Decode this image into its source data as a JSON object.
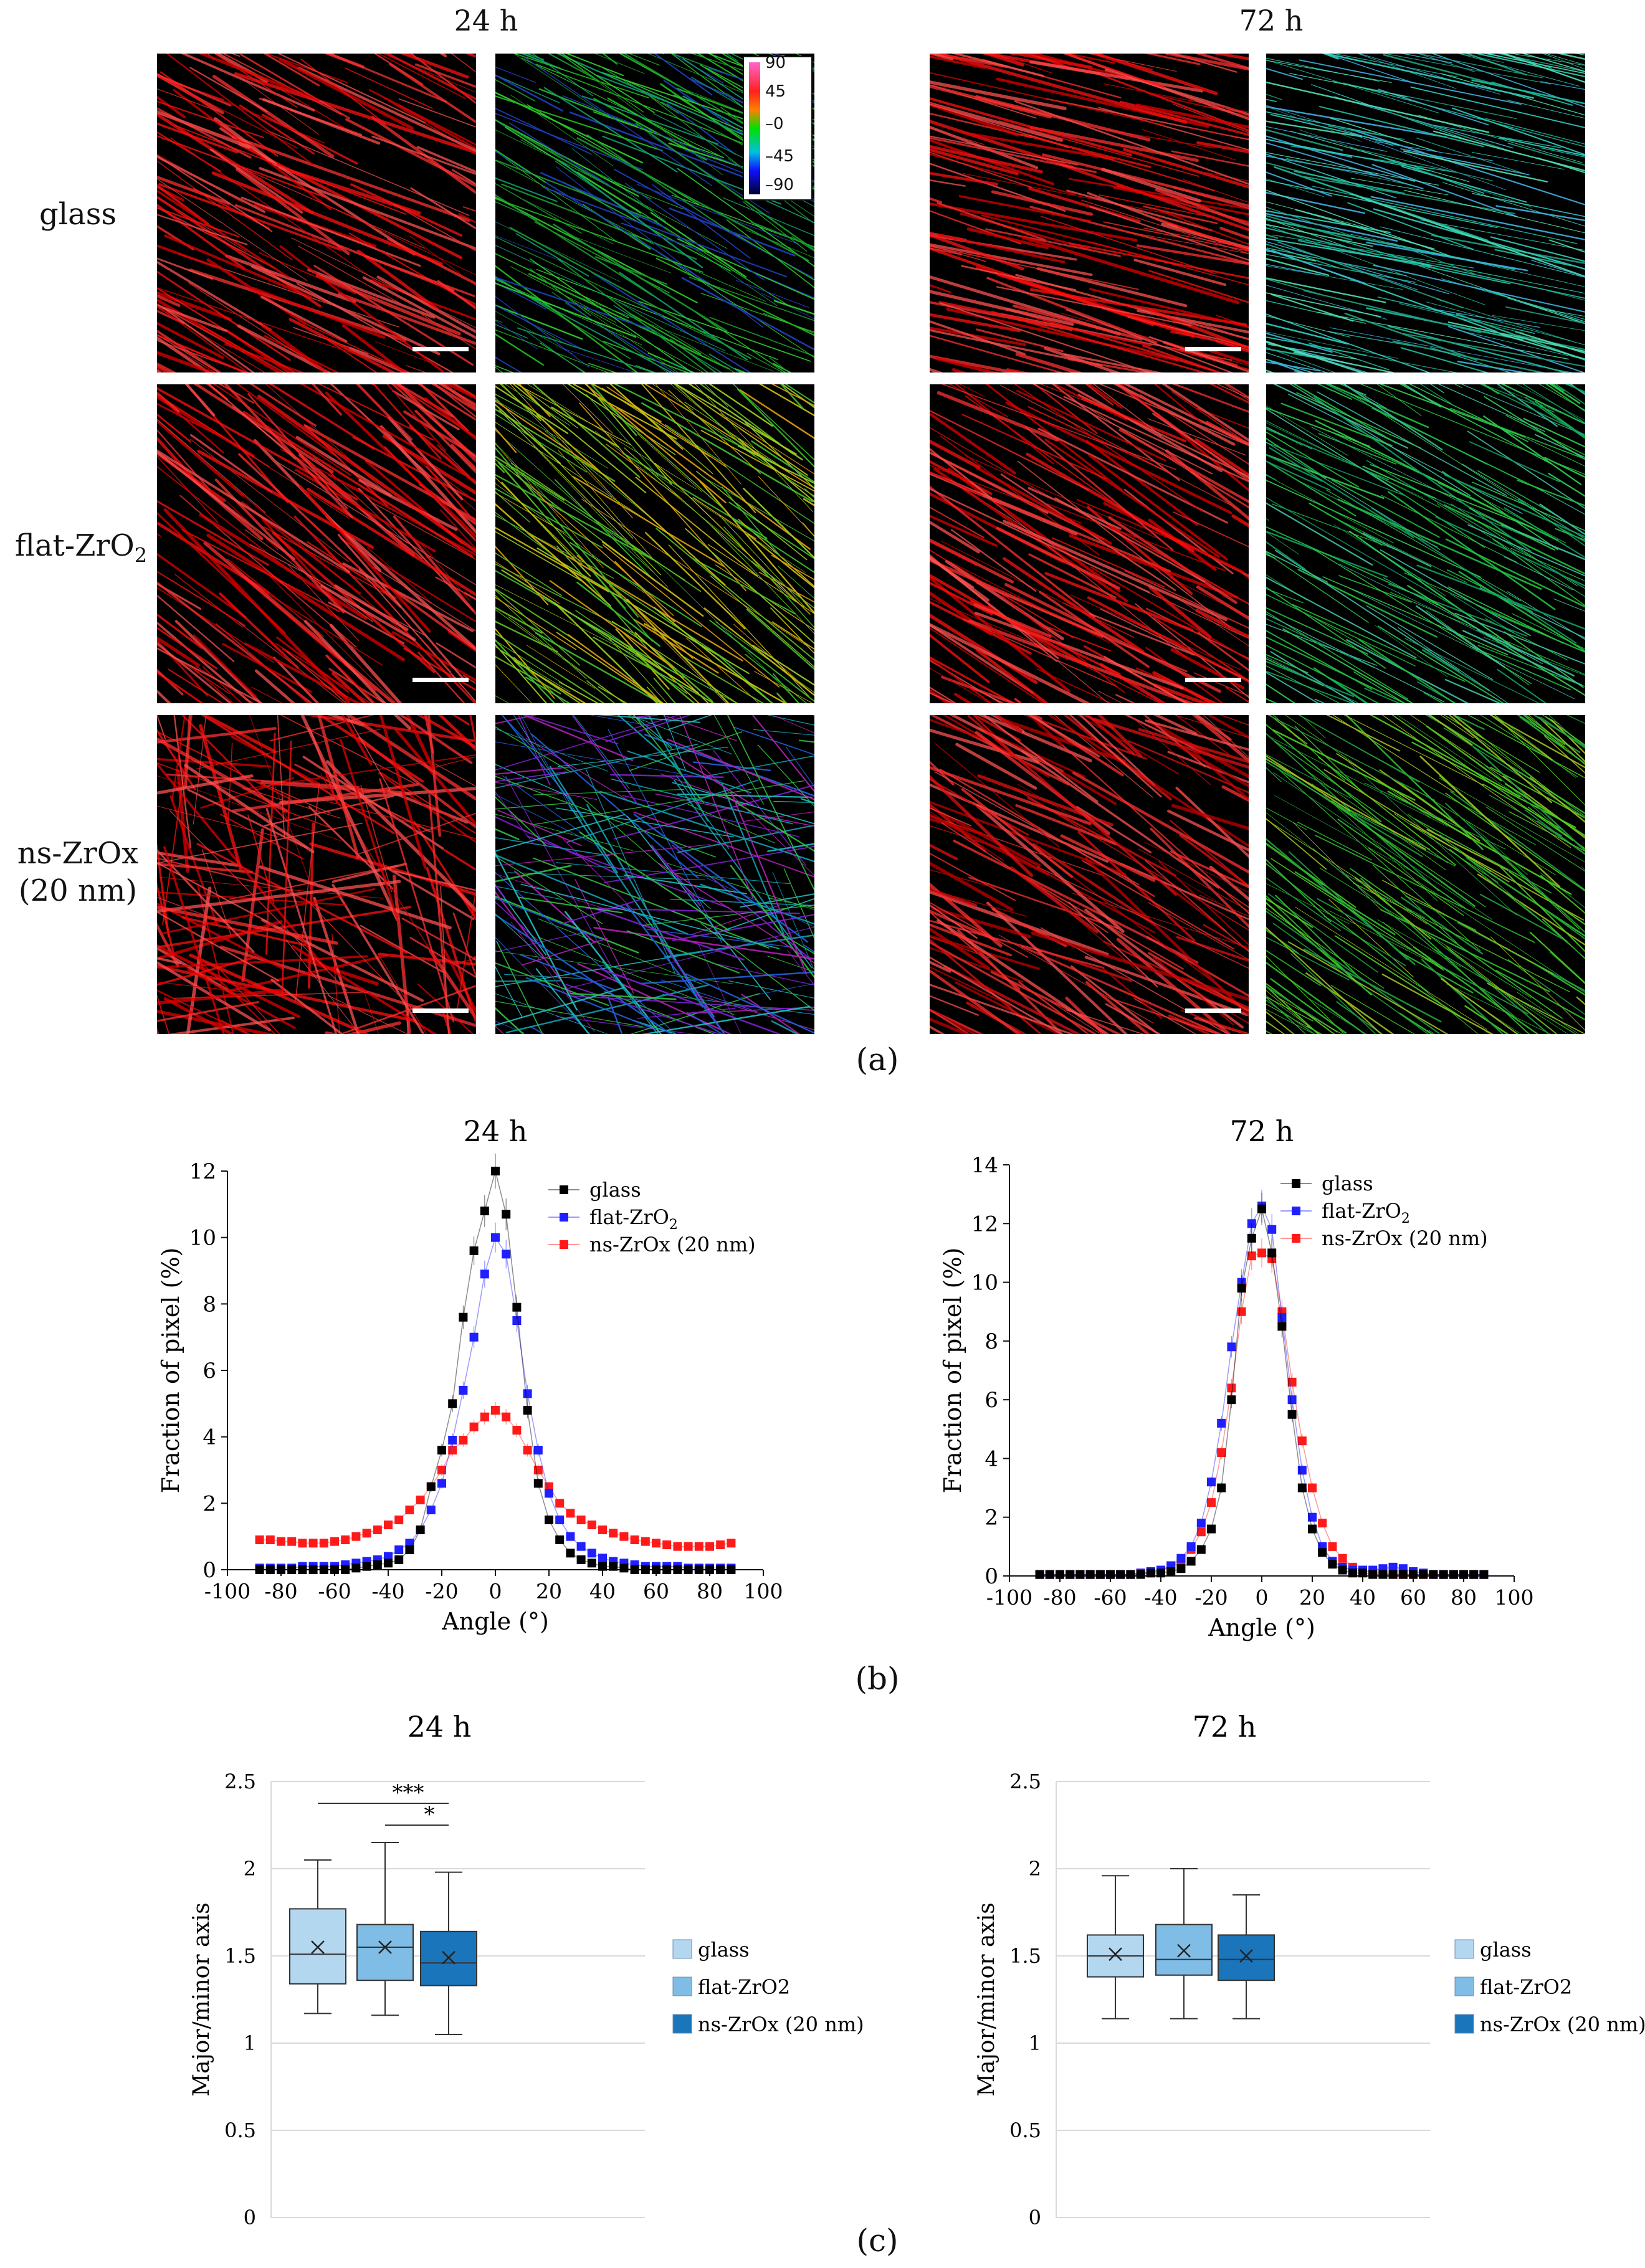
{
  "panel_a": {
    "time_24": "24 h",
    "time_72": "72 h",
    "rows": [
      {
        "label_main": "glass",
        "label_sub": "",
        "label_line2": ""
      },
      {
        "label_main": "flat-ZrO",
        "label_sub": "2",
        "label_line2": ""
      },
      {
        "label_main": "ns-ZrOx",
        "label_sub": "",
        "label_line2": "(20 nm)"
      }
    ],
    "colorbar": [
      "90",
      "45",
      "–0",
      "–45",
      "–90"
    ],
    "sublabel": "(a)"
  },
  "panel_b": {
    "sublabel": "(b)"
  },
  "panel_c": {
    "sublabel": "(c)"
  },
  "colors": {
    "glass": "#000000",
    "flat": "#1f1fff",
    "ns": "#ff1a1a",
    "box_glass": "#b4d7f0",
    "box_flat": "#7fbde6",
    "box_ns": "#1b75bb"
  },
  "chart_data": [
    {
      "type": "scatter",
      "title": "24 h",
      "xlabel": "Angle (°)",
      "ylabel": "Fraction of pixel (%)",
      "xlim": [
        -100,
        100
      ],
      "ylim": [
        0,
        12
      ],
      "xticks": [
        -100,
        -80,
        -60,
        -40,
        -20,
        0,
        20,
        40,
        60,
        80,
        100
      ],
      "yticks": [
        0,
        2,
        4,
        6,
        8,
        10,
        12
      ],
      "x": [
        -88,
        -84,
        -80,
        -76,
        -72,
        -68,
        -64,
        -60,
        -56,
        -52,
        -48,
        -44,
        -40,
        -36,
        -32,
        -28,
        -24,
        -20,
        -16,
        -12,
        -8,
        -4,
        0,
        4,
        8,
        12,
        16,
        20,
        24,
        28,
        32,
        36,
        40,
        44,
        48,
        52,
        56,
        60,
        64,
        68,
        72,
        76,
        80,
        84,
        88
      ],
      "series": [
        {
          "name": "glass",
          "legend": "glass",
          "legend_sub": "",
          "values": [
            0.0,
            0.0,
            0.0,
            0.0,
            0.0,
            0.0,
            0.0,
            0.0,
            0.0,
            0.05,
            0.1,
            0.15,
            0.2,
            0.3,
            0.6,
            1.2,
            2.5,
            3.6,
            5.0,
            7.6,
            9.6,
            10.8,
            12.0,
            10.7,
            7.9,
            4.8,
            2.6,
            1.5,
            0.9,
            0.5,
            0.3,
            0.2,
            0.1,
            0.1,
            0.05,
            0.0,
            0.0,
            0.0,
            0.0,
            0.0,
            0.0,
            0.0,
            0.0,
            0.0,
            0.0
          ]
        },
        {
          "name": "flat-ZrO2",
          "legend": "flat-ZrO",
          "legend_sub": "2",
          "values": [
            0.05,
            0.05,
            0.05,
            0.05,
            0.1,
            0.1,
            0.1,
            0.1,
            0.15,
            0.2,
            0.25,
            0.3,
            0.4,
            0.6,
            0.8,
            1.2,
            1.8,
            2.6,
            3.9,
            5.4,
            7.0,
            8.9,
            10.0,
            9.5,
            7.5,
            5.3,
            3.6,
            2.3,
            1.5,
            1.0,
            0.7,
            0.5,
            0.35,
            0.25,
            0.2,
            0.15,
            0.1,
            0.1,
            0.1,
            0.1,
            0.05,
            0.05,
            0.05,
            0.05,
            0.05
          ]
        },
        {
          "name": "ns-ZrOx (20 nm)",
          "legend": "ns-ZrOx (20 nm)",
          "legend_sub": "",
          "values": [
            0.9,
            0.9,
            0.85,
            0.85,
            0.8,
            0.8,
            0.8,
            0.85,
            0.9,
            1.0,
            1.1,
            1.2,
            1.35,
            1.5,
            1.8,
            2.1,
            2.5,
            3.0,
            3.6,
            3.9,
            4.3,
            4.6,
            4.8,
            4.6,
            4.2,
            3.6,
            3.0,
            2.5,
            2.0,
            1.7,
            1.5,
            1.35,
            1.2,
            1.1,
            1.0,
            0.9,
            0.85,
            0.8,
            0.75,
            0.7,
            0.7,
            0.7,
            0.7,
            0.75,
            0.8
          ]
        }
      ]
    },
    {
      "type": "scatter",
      "title": "72 h",
      "xlabel": "Angle (°)",
      "ylabel": "Fraction of pixel (%)",
      "xlim": [
        -100,
        100
      ],
      "ylim": [
        0,
        14
      ],
      "xticks": [
        -100,
        -80,
        -60,
        -40,
        -20,
        0,
        20,
        40,
        60,
        80,
        100
      ],
      "yticks": [
        0,
        2,
        4,
        6,
        8,
        10,
        12,
        14
      ],
      "x": [
        -88,
        -84,
        -80,
        -76,
        -72,
        -68,
        -64,
        -60,
        -56,
        -52,
        -48,
        -44,
        -40,
        -36,
        -32,
        -28,
        -24,
        -20,
        -16,
        -12,
        -8,
        -4,
        0,
        4,
        8,
        12,
        16,
        20,
        24,
        28,
        32,
        36,
        40,
        44,
        48,
        52,
        56,
        60,
        64,
        68,
        72,
        76,
        80,
        84,
        88
      ],
      "series": [
        {
          "name": "glass",
          "legend": "glass",
          "legend_sub": "",
          "values": [
            0.05,
            0.05,
            0.05,
            0.05,
            0.05,
            0.05,
            0.05,
            0.05,
            0.05,
            0.05,
            0.05,
            0.1,
            0.1,
            0.15,
            0.25,
            0.5,
            0.9,
            1.6,
            3.0,
            6.0,
            9.8,
            11.5,
            12.5,
            11.0,
            8.5,
            5.5,
            3.0,
            1.6,
            0.8,
            0.4,
            0.2,
            0.1,
            0.1,
            0.05,
            0.05,
            0.05,
            0.05,
            0.05,
            0.05,
            0.05,
            0.05,
            0.05,
            0.05,
            0.05,
            0.05
          ]
        },
        {
          "name": "flat-ZrO2",
          "legend": "flat-ZrO",
          "legend_sub": "2",
          "values": [
            0.05,
            0.05,
            0.05,
            0.05,
            0.05,
            0.05,
            0.05,
            0.05,
            0.05,
            0.05,
            0.1,
            0.15,
            0.2,
            0.35,
            0.6,
            1.0,
            1.8,
            3.2,
            5.2,
            7.8,
            10.0,
            12.0,
            12.6,
            11.8,
            8.8,
            6.0,
            3.6,
            2.0,
            1.0,
            0.5,
            0.3,
            0.2,
            0.2,
            0.2,
            0.25,
            0.3,
            0.25,
            0.15,
            0.1,
            0.05,
            0.05,
            0.05,
            0.05,
            0.05,
            0.05
          ]
        },
        {
          "name": "ns-ZrOx (20 nm)",
          "legend": "ns-ZrOx (20 nm)",
          "legend_sub": "",
          "values": [
            0.05,
            0.05,
            0.05,
            0.05,
            0.05,
            0.05,
            0.05,
            0.05,
            0.05,
            0.05,
            0.1,
            0.1,
            0.2,
            0.3,
            0.5,
            0.9,
            1.5,
            2.5,
            4.2,
            6.4,
            9.0,
            10.9,
            11.0,
            10.8,
            9.0,
            6.6,
            4.6,
            3.0,
            1.8,
            1.0,
            0.6,
            0.3,
            0.2,
            0.1,
            0.1,
            0.05,
            0.05,
            0.05,
            0.05,
            0.05,
            0.05,
            0.05,
            0.05,
            0.05,
            0.05
          ]
        }
      ]
    },
    {
      "type": "box",
      "title": "24 h",
      "xlabel": "",
      "ylabel": "Major/minor axis",
      "ylim": [
        0,
        2.5
      ],
      "yticks": [
        "0",
        "0.5",
        "1",
        "1.5",
        "2",
        "2.5"
      ],
      "significance": [
        {
          "from": 0,
          "to": 2,
          "label": "***"
        },
        {
          "from": 1,
          "to": 2,
          "label": "*"
        }
      ],
      "series": [
        {
          "name": "glass",
          "min": 1.17,
          "q1": 1.34,
          "median": 1.51,
          "q3": 1.77,
          "max": 2.05,
          "mean": 1.55
        },
        {
          "name": "flat-ZrO2",
          "min": 1.16,
          "q1": 1.36,
          "median": 1.55,
          "q3": 1.68,
          "max": 2.15,
          "mean": 1.55
        },
        {
          "name": "ns-ZrOx (20 nm)",
          "min": 1.05,
          "q1": 1.33,
          "median": 1.46,
          "q3": 1.64,
          "max": 1.98,
          "mean": 1.49
        }
      ]
    },
    {
      "type": "box",
      "title": "72 h",
      "xlabel": "",
      "ylabel": "Major/minor axis",
      "ylim": [
        0,
        2.5
      ],
      "yticks": [
        "0",
        "0.5",
        "1",
        "1.5",
        "2",
        "2.5"
      ],
      "significance": [],
      "series": [
        {
          "name": "glass",
          "min": 1.14,
          "q1": 1.38,
          "median": 1.5,
          "q3": 1.62,
          "max": 1.96,
          "mean": 1.51
        },
        {
          "name": "flat-ZrO2",
          "min": 1.14,
          "q1": 1.39,
          "median": 1.48,
          "q3": 1.68,
          "max": 2.0,
          "mean": 1.53
        },
        {
          "name": "ns-ZrOx (20 nm)",
          "min": 1.14,
          "q1": 1.36,
          "median": 1.48,
          "q3": 1.62,
          "max": 1.85,
          "mean": 1.5
        }
      ]
    }
  ]
}
